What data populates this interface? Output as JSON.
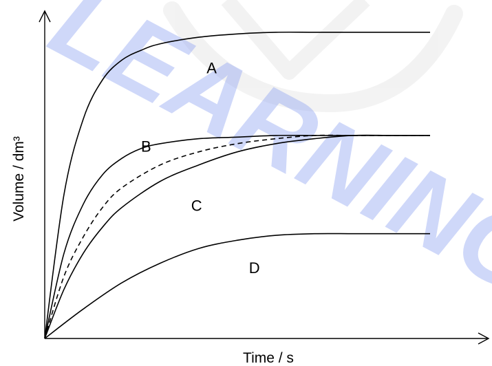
{
  "watermark": {
    "text": "LEARNING",
    "color": "#8FA3F2"
  },
  "chart_data": {
    "type": "line",
    "xlabel": "Time / s",
    "ylabel": "Volume / dm³",
    "xlim": [
      0,
      10
    ],
    "ylim": [
      0,
      10
    ],
    "x_ticks": "none",
    "y_ticks": "none",
    "grid": false,
    "legend": "none",
    "series": [
      {
        "name": "A",
        "style": "solid",
        "x": [
          0,
          0.5,
          1,
          1.5,
          2,
          2.5,
          3,
          4,
          5,
          6,
          7,
          8,
          9,
          10
        ],
        "y": [
          0,
          4.4,
          6.7,
          7.9,
          8.5,
          8.8,
          9.0,
          9.2,
          9.3,
          9.35,
          9.35,
          9.35,
          9.35,
          9.35
        ]
      },
      {
        "name": "B",
        "style": "solid",
        "x": [
          0,
          0.5,
          1,
          1.5,
          2,
          2.5,
          3,
          4,
          5,
          6,
          7,
          8,
          9,
          10
        ],
        "y": [
          0,
          2.6,
          4.1,
          5.0,
          5.5,
          5.8,
          5.95,
          6.1,
          6.15,
          6.2,
          6.2,
          6.2,
          6.2,
          6.2
        ]
      },
      {
        "name": "",
        "style": "dashed",
        "x": [
          0,
          0.5,
          1,
          1.5,
          2,
          3,
          4,
          5,
          6,
          7,
          8,
          9,
          10
        ],
        "y": [
          0,
          1.9,
          3.1,
          4.0,
          4.6,
          5.3,
          5.7,
          5.95,
          6.1,
          6.2,
          6.2,
          6.2,
          6.2
        ]
      },
      {
        "name": "C",
        "style": "solid",
        "x": [
          0,
          0.5,
          1,
          1.5,
          2,
          3,
          4,
          5,
          6,
          7,
          8,
          9,
          10
        ],
        "y": [
          0,
          1.5,
          2.6,
          3.4,
          4.0,
          4.8,
          5.3,
          5.7,
          5.95,
          6.1,
          6.2,
          6.2,
          6.2
        ]
      },
      {
        "name": "D",
        "style": "solid",
        "x": [
          0,
          1,
          2,
          3,
          4,
          5,
          6,
          7,
          8,
          9,
          10
        ],
        "y": [
          0,
          0.9,
          1.7,
          2.3,
          2.75,
          3.0,
          3.15,
          3.2,
          3.2,
          3.2,
          3.2
        ]
      }
    ],
    "labels": [
      {
        "text": "A",
        "x": 4.2,
        "y": 8.1
      },
      {
        "text": "B",
        "x": 2.5,
        "y": 5.7
      },
      {
        "text": "C",
        "x": 3.8,
        "y": 3.9
      },
      {
        "text": "D",
        "x": 5.3,
        "y": 2.0
      }
    ]
  }
}
